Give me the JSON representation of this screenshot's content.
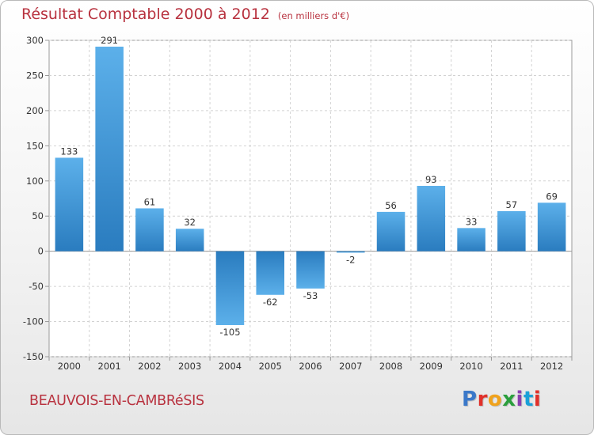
{
  "header": {
    "title": "Résultat Comptable 2000 à 2012",
    "subtitle": "(en milliers d'€)"
  },
  "footer": {
    "place_name": "BEAUVOIS-EN-CAMBRéSIS",
    "logo_text": "Proxiti",
    "logo_colors": [
      "#3a78c9",
      "#e1302a",
      "#f0a21c",
      "#2a9e3c",
      "#8a3fb0",
      "#1aa0d8",
      "#e1302a"
    ]
  },
  "chart_data": {
    "type": "bar",
    "categories": [
      "2000",
      "2001",
      "2002",
      "2003",
      "2004",
      "2005",
      "2006",
      "2007",
      "2008",
      "2009",
      "2010",
      "2011",
      "2012"
    ],
    "values": [
      133,
      291,
      61,
      32,
      -105,
      -62,
      -53,
      -2,
      56,
      93,
      33,
      57,
      69
    ],
    "data_labels": [
      "133",
      "291",
      "61",
      "32",
      "-105",
      "-62",
      "-53",
      "-2",
      "56",
      "93",
      "33",
      "57",
      "69"
    ],
    "y_ticks": [
      300,
      250,
      200,
      150,
      100,
      50,
      0,
      -50,
      -100,
      -150
    ],
    "y_tick_labels": [
      "300",
      "250",
      "200",
      "150",
      "100",
      "50",
      "0",
      "-50",
      "-100",
      "-150"
    ],
    "ylim": [
      -150,
      300
    ],
    "grid": true,
    "bar_color_light": "#5cb0ea",
    "bar_color_dark": "#2a7cbf"
  }
}
